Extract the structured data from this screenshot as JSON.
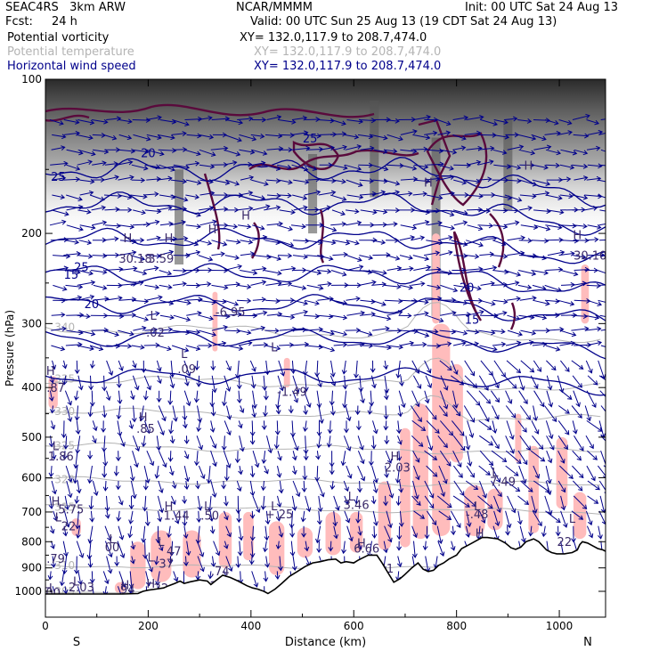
{
  "header": {
    "model": "SEAC4RS   3km ARW",
    "org": "NCAR/MMMM",
    "init": "Init: 00 UTC Sat 24 Aug 13",
    "fcst_label": "Fcst:",
    "fcst_value": "24 h",
    "valid": "Valid: 00 UTC Sun 25 Aug 13 (19 CDT Sat 24 Aug 13)",
    "fields": [
      {
        "label": "Potential vorticity",
        "xy": "XY= 132.0,117.9 to 208.7,474.0",
        "color": "#000000"
      },
      {
        "label": "Potential temperature",
        "xy": "XY= 132.0,117.9 to 208.7,474.0",
        "color": "#b4b4b4"
      },
      {
        "label": "Horizontal wind speed",
        "xy": "XY= 132.0,117.9 to 208.7,474.0",
        "color": "#00008b"
      }
    ]
  },
  "colors": {
    "pv_shading": "#ffbcbc",
    "isentrope": "#b4b4b4",
    "wind_vector": "#00008b",
    "wind_contour": "#00008b",
    "pv_contour": "#5a0a3c",
    "terrain": "#000000"
  },
  "chart_data": {
    "type": "cross-section",
    "xlabel": "Distance (km)",
    "ylabel": "Pressure (hPa)",
    "xlim": [
      0,
      1090
    ],
    "ylim": [
      1050,
      100
    ],
    "y_scale": "log-pressure",
    "x_ticks": [
      "0",
      "200",
      "400",
      "600",
      "800",
      "1000"
    ],
    "y_ticks": [
      "100",
      "200",
      "300",
      "400",
      "500",
      "600",
      "700",
      "800",
      "900",
      "1000"
    ],
    "x_end_labels": {
      "left": "S",
      "right": "N"
    },
    "isentropes": [
      {
        "label": "340",
        "p": 305
      },
      {
        "label": "335",
        "p": 385
      },
      {
        "label": "330",
        "p": 445
      },
      {
        "label": "325",
        "p": 520
      },
      {
        "label": "320",
        "p": 605
      },
      {
        "label": "315",
        "p": 685
      },
      {
        "label": "310",
        "p": 890
      },
      {
        "label": "305",
        "p": 1000
      }
    ],
    "wind_contour_labels": [
      {
        "text": "20",
        "x": 200,
        "p": 142
      },
      {
        "text": "25",
        "x": 25,
        "p": 158
      },
      {
        "text": "25",
        "x": 515,
        "p": 133
      },
      {
        "text": "25",
        "x": 70,
        "p": 237
      },
      {
        "text": "20",
        "x": 90,
        "p": 280
      },
      {
        "text": "20",
        "x": 820,
        "p": 260
      },
      {
        "text": "15",
        "x": 830,
        "p": 300
      },
      {
        "text": "15",
        "x": 50,
        "p": 245
      }
    ],
    "extrema_labels": [
      {
        "text": "H",
        "x": 160,
        "p": 208
      },
      {
        "text": "30.18",
        "x": 175,
        "p": 228
      },
      {
        "text": "H",
        "x": 240,
        "p": 208
      },
      {
        "text": "3.59",
        "x": 225,
        "p": 228
      },
      {
        "text": "H",
        "x": 325,
        "p": 200
      },
      {
        "text": "H",
        "x": 390,
        "p": 188
      },
      {
        "text": "H",
        "x": 1035,
        "p": 205
      },
      {
        "text": "30.10",
        "x": 1060,
        "p": 225
      },
      {
        "text": "H",
        "x": 745,
        "p": 162
      },
      {
        "text": "H",
        "x": 940,
        "p": 150
      },
      {
        "text": "L",
        "x": 210,
        "p": 295
      },
      {
        "text": "-.02",
        "x": 210,
        "p": 318
      },
      {
        "text": "-6.95",
        "x": 360,
        "p": 290
      },
      {
        "text": "L",
        "x": 270,
        "p": 350
      },
      {
        "text": ".09",
        "x": 275,
        "p": 375
      },
      {
        "text": "L",
        "x": 445,
        "p": 340
      },
      {
        "text": "-1.49",
        "x": 480,
        "p": 415
      },
      {
        "text": "H",
        "x": 10,
        "p": 378
      },
      {
        "text": ".87",
        "x": 20,
        "p": 408
      },
      {
        "text": "H",
        "x": 190,
        "p": 465
      },
      {
        "text": ".85",
        "x": 195,
        "p": 490
      },
      {
        "text": "L",
        "x": 20,
        "p": 530
      },
      {
        "text": "1.86",
        "x": 30,
        "p": 555
      },
      {
        "text": "H",
        "x": 680,
        "p": 555
      },
      {
        "text": "2.03",
        "x": 685,
        "p": 583
      },
      {
        "text": "L",
        "x": 875,
        "p": 597
      },
      {
        "text": "7.49",
        "x": 890,
        "p": 622
      },
      {
        "text": "L",
        "x": 595,
        "p": 665
      },
      {
        "text": "3.46",
        "x": 605,
        "p": 690
      },
      {
        "text": "H",
        "x": 20,
        "p": 680
      },
      {
        "text": "5.75",
        "x": 50,
        "p": 705
      },
      {
        "text": "L",
        "x": 25,
        "p": 730
      },
      {
        "text": "22",
        "x": 45,
        "p": 760
      },
      {
        "text": "H",
        "x": 240,
        "p": 695
      },
      {
        "text": "1.44",
        "x": 255,
        "p": 725
      },
      {
        "text": "L",
        "x": 315,
        "p": 695
      },
      {
        "text": ".50",
        "x": 320,
        "p": 725
      },
      {
        "text": "L",
        "x": 445,
        "p": 695
      },
      {
        "text": "+.25",
        "x": 455,
        "p": 720
      },
      {
        "text": "L",
        "x": 840,
        "p": 695
      },
      {
        "text": "-.48",
        "x": 840,
        "p": 720
      },
      {
        "text": "L",
        "x": 1025,
        "p": 735
      },
      {
        "text": "L",
        "x": 130,
        "p": 805
      },
      {
        "text": "00",
        "x": 130,
        "p": 835
      },
      {
        "text": "L",
        "x": 225,
        "p": 815
      },
      {
        "text": "47",
        "x": 250,
        "p": 850
      },
      {
        "text": "L",
        "x": 205,
        "p": 875
      },
      {
        "text": "37",
        "x": 235,
        "p": 900
      },
      {
        "text": "H",
        "x": 615,
        "p": 820
      },
      {
        "text": "6.66",
        "x": 625,
        "p": 840
      },
      {
        "text": "H",
        "x": 845,
        "p": 785
      },
      {
        "text": "22",
        "x": 1010,
        "p": 815
      },
      {
        "text": ".79",
        "x": 20,
        "p": 880
      },
      {
        "text": ".74",
        "x": 340,
        "p": 930
      },
      {
        "text": ".51",
        "x": 660,
        "p": 920
      },
      {
        "text": "31.16",
        "x": 740,
        "p": 950
      },
      {
        "text": "L",
        "x": 60,
        "p": 975
      },
      {
        "text": "2.03",
        "x": 70,
        "p": 1000
      },
      {
        "text": "H",
        "x": 155,
        "p": 990
      },
      {
        "text": "94",
        "x": 160,
        "p": 1010
      },
      {
        "text": "H",
        "x": 205,
        "p": 985
      },
      {
        "text": "22",
        "x": 225,
        "p": 1005
      },
      {
        "text": "2.52",
        "x": 345,
        "p": 995
      },
      {
        "text": "H",
        "x": 5,
        "p": 1005
      },
      {
        "text": "00",
        "x": 15,
        "p": 1025
      }
    ],
    "terrain_pressure": [
      [
        0,
        1012
      ],
      [
        50,
        1012
      ],
      [
        100,
        1012
      ],
      [
        150,
        1012
      ],
      [
        180,
        1010
      ],
      [
        190,
        1000
      ],
      [
        200,
        995
      ],
      [
        215,
        990
      ],
      [
        230,
        985
      ],
      [
        240,
        975
      ],
      [
        252,
        965
      ],
      [
        262,
        955
      ],
      [
        270,
        965
      ],
      [
        282,
        958
      ],
      [
        300,
        950
      ],
      [
        315,
        955
      ],
      [
        322,
        970
      ],
      [
        332,
        952
      ],
      [
        345,
        930
      ],
      [
        360,
        940
      ],
      [
        375,
        955
      ],
      [
        392,
        975
      ],
      [
        403,
        985
      ],
      [
        413,
        990
      ],
      [
        425,
        1000
      ],
      [
        433,
        1010
      ],
      [
        447,
        990
      ],
      [
        460,
        965
      ],
      [
        475,
        935
      ],
      [
        490,
        915
      ],
      [
        505,
        895
      ],
      [
        520,
        880
      ],
      [
        535,
        875
      ],
      [
        550,
        868
      ],
      [
        565,
        865
      ],
      [
        575,
        880
      ],
      [
        585,
        875
      ],
      [
        600,
        880
      ],
      [
        608,
        870
      ],
      [
        618,
        860
      ],
      [
        628,
        850
      ],
      [
        645,
        850
      ],
      [
        655,
        880
      ],
      [
        668,
        925
      ],
      [
        678,
        960
      ],
      [
        690,
        945
      ],
      [
        698,
        930
      ],
      [
        713,
        900
      ],
      [
        725,
        880
      ],
      [
        735,
        905
      ],
      [
        745,
        915
      ],
      [
        755,
        910
      ],
      [
        765,
        890
      ],
      [
        775,
        880
      ],
      [
        785,
        865
      ],
      [
        800,
        850
      ],
      [
        810,
        825
      ],
      [
        825,
        810
      ],
      [
        840,
        795
      ],
      [
        850,
        785
      ],
      [
        860,
        785
      ],
      [
        880,
        790
      ],
      [
        895,
        805
      ],
      [
        906,
        822
      ],
      [
        915,
        828
      ],
      [
        925,
        820
      ],
      [
        935,
        800
      ],
      [
        950,
        790
      ],
      [
        960,
        800
      ],
      [
        975,
        830
      ],
      [
        985,
        840
      ],
      [
        995,
        845
      ],
      [
        1010,
        845
      ],
      [
        1025,
        840
      ],
      [
        1035,
        830
      ],
      [
        1040,
        810
      ],
      [
        1045,
        800
      ],
      [
        1055,
        805
      ],
      [
        1065,
        815
      ],
      [
        1075,
        825
      ],
      [
        1085,
        830
      ],
      [
        1090,
        835
      ]
    ]
  }
}
